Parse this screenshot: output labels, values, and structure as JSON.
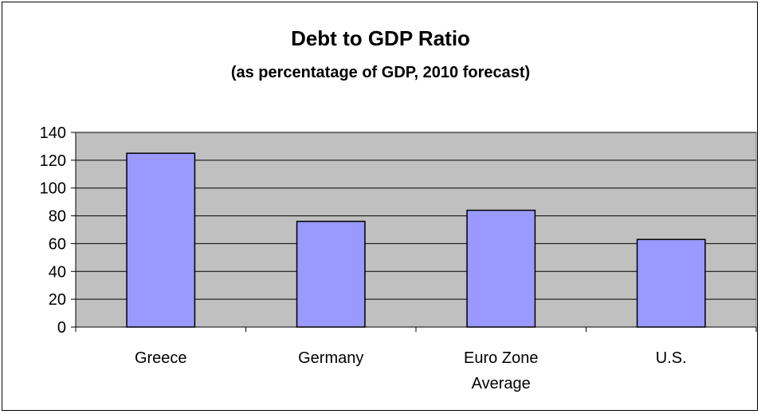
{
  "chart_data": {
    "type": "bar",
    "title": "Debt to GDP Ratio",
    "subtitle": "(as percentatage of GDP, 2010 forecast)",
    "categories": [
      [
        "Greece"
      ],
      [
        "Germany"
      ],
      [
        "Euro Zone",
        "Average"
      ],
      [
        "U.S."
      ]
    ],
    "values": [
      125,
      76,
      84,
      63
    ],
    "ylim": [
      0,
      140
    ],
    "yticks": [
      0,
      20,
      40,
      60,
      80,
      100,
      120,
      140
    ],
    "grid": true,
    "legend": "none",
    "colors": {
      "bar": "#9999ff",
      "plot_background": "#c0c0c0",
      "grid": "#000000"
    }
  }
}
